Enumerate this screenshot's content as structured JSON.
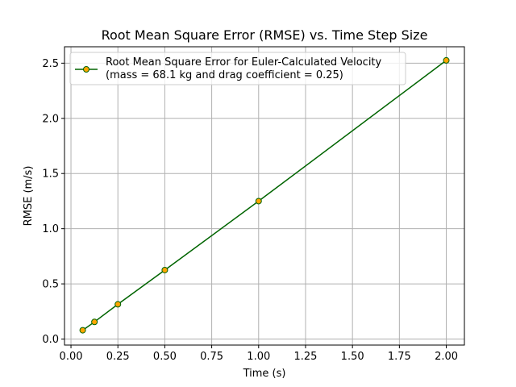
{
  "chart_data": {
    "type": "line",
    "title": "Root Mean Square Error (RMSE) vs. Time Step Size",
    "xlabel": "Time (s)",
    "ylabel": "RMSE (m/s)",
    "xlim": [
      -0.0345,
      2.0965
    ],
    "ylim": [
      -0.0546,
      2.6487
    ],
    "xticks": [
      "0.00",
      "0.25",
      "0.50",
      "0.75",
      "1.00",
      "1.25",
      "1.50",
      "1.75",
      "2.00"
    ],
    "xtick_values": [
      0,
      0.25,
      0.5,
      0.75,
      1.0,
      1.25,
      1.5,
      1.75,
      2.0
    ],
    "yticks": [
      "0.0",
      "0.5",
      "1.0",
      "1.5",
      "2.0",
      "2.5"
    ],
    "ytick_values": [
      0,
      0.5,
      1.0,
      1.5,
      2.0,
      2.5
    ],
    "grid": true,
    "legend_position": "upper-left",
    "series": [
      {
        "name": "Root Mean Square Error for Euler-Calculated Velocity\n(mass = 68.1 kg and drag coefficient = 0.25)",
        "legend_lines": [
          "Root Mean Square Error for Euler-Calculated Velocity",
          "(mass = 68.1 kg and drag coefficient = 0.25)"
        ],
        "line_color": "#006400",
        "marker_fill": "#ffa500",
        "marker_edge": "#006400",
        "x": [
          0.0625,
          0.125,
          0.25,
          0.5,
          1.0,
          2.0
        ],
        "y": [
          0.08,
          0.155,
          0.315,
          0.625,
          1.25,
          2.525
        ]
      }
    ]
  }
}
